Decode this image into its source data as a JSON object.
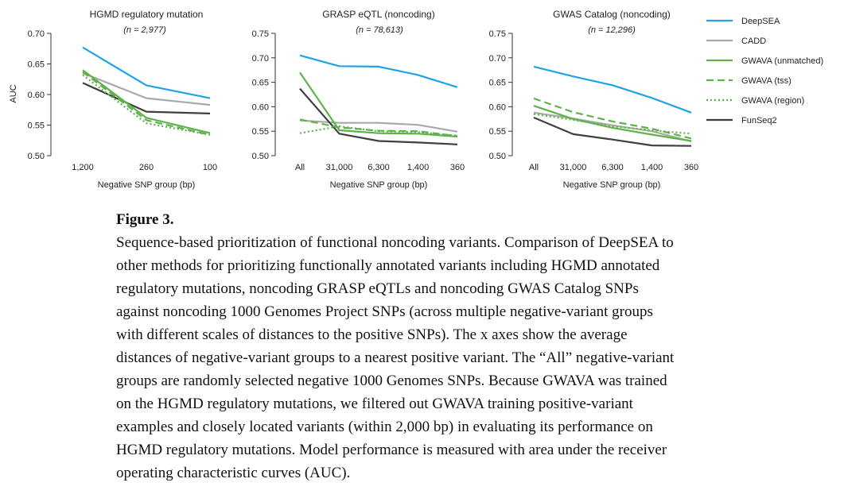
{
  "colors": {
    "DeepSEA": "#1ea3e6",
    "CADD": "#a9a9a9",
    "GWAVA (unmatched)": "#5fb24a",
    "GWAVA (tss)": "#5fb24a",
    "GWAVA (region)": "#5fb24a",
    "FunSeq2": "#3f3f3f"
  },
  "legend": {
    "placement": "right",
    "items": [
      {
        "name": "DeepSEA",
        "style": "solid"
      },
      {
        "name": "CADD",
        "style": "solid"
      },
      {
        "name": "GWAVA (unmatched)",
        "style": "solid"
      },
      {
        "name": "GWAVA (tss)",
        "style": "dashed"
      },
      {
        "name": "GWAVA (region)",
        "style": "dotted"
      },
      {
        "name": "FunSeq2",
        "style": "solid"
      }
    ]
  },
  "chart_data": [
    {
      "type": "line",
      "title": "HGMD regulatory mutation",
      "subtitle": "(n = 2,977)",
      "xlabel": "Negative SNP group (bp)",
      "ylabel": "AUC",
      "categories": [
        "1,200",
        "260",
        "100"
      ],
      "yticks": [
        "0.50",
        "0.55",
        "0.60",
        "0.65",
        "0.70"
      ],
      "ylim": [
        0.5,
        0.7
      ],
      "series": [
        {
          "name": "DeepSEA",
          "values": [
            0.677,
            0.615,
            0.594
          ]
        },
        {
          "name": "CADD",
          "values": [
            0.635,
            0.594,
            0.583
          ]
        },
        {
          "name": "GWAVA (unmatched)",
          "values": [
            0.64,
            0.562,
            0.537
          ]
        },
        {
          "name": "GWAVA (tss)",
          "values": [
            0.637,
            0.558,
            0.534
          ]
        },
        {
          "name": "GWAVA (region)",
          "values": [
            0.632,
            0.553,
            0.534
          ]
        },
        {
          "name": "FunSeq2",
          "values": [
            0.619,
            0.572,
            0.569
          ]
        }
      ]
    },
    {
      "type": "line",
      "title": "GRASP eQTL (noncoding)",
      "subtitle": "(n = 78,613)",
      "xlabel": "Negative SNP group (bp)",
      "ylabel": "",
      "categories": [
        "All",
        "31,000",
        "6,300",
        "1,400",
        "360"
      ],
      "yticks": [
        "0.50",
        "0.55",
        "0.60",
        "0.65",
        "0.70",
        "0.75"
      ],
      "ylim": [
        0.5,
        0.75
      ],
      "series": [
        {
          "name": "DeepSEA",
          "values": [
            0.705,
            0.683,
            0.682,
            0.665,
            0.64
          ]
        },
        {
          "name": "CADD",
          "values": [
            0.572,
            0.567,
            0.567,
            0.563,
            0.549
          ]
        },
        {
          "name": "GWAVA (unmatched)",
          "values": [
            0.67,
            0.552,
            0.546,
            0.545,
            0.539
          ]
        },
        {
          "name": "GWAVA (tss)",
          "values": [
            0.574,
            0.558,
            0.551,
            0.55,
            0.54
          ]
        },
        {
          "name": "GWAVA (region)",
          "values": [
            0.546,
            0.56,
            0.55,
            0.548,
            0.541
          ]
        },
        {
          "name": "FunSeq2",
          "values": [
            0.637,
            0.545,
            0.53,
            0.527,
            0.523
          ]
        }
      ]
    },
    {
      "type": "line",
      "title": "GWAS Catalog (noncoding)",
      "subtitle": "(n = 12,296)",
      "xlabel": "Negative SNP group (bp)",
      "ylabel": "",
      "categories": [
        "All",
        "31,000",
        "6,300",
        "1,400",
        "360"
      ],
      "yticks": [
        "0.50",
        "0.55",
        "0.60",
        "0.65",
        "0.70",
        "0.75"
      ],
      "ylim": [
        0.5,
        0.75
      ],
      "series": [
        {
          "name": "DeepSEA",
          "values": [
            0.682,
            0.662,
            0.644,
            0.618,
            0.588
          ]
        },
        {
          "name": "CADD",
          "values": [
            0.588,
            0.576,
            0.562,
            0.55,
            0.529
          ]
        },
        {
          "name": "GWAVA (unmatched)",
          "values": [
            0.602,
            0.575,
            0.557,
            0.543,
            0.53
          ]
        },
        {
          "name": "GWAVA (tss)",
          "values": [
            0.617,
            0.589,
            0.57,
            0.555,
            0.535
          ]
        },
        {
          "name": "GWAVA (region)",
          "values": [
            0.585,
            0.573,
            0.56,
            0.552,
            0.545
          ]
        },
        {
          "name": "FunSeq2",
          "values": [
            0.578,
            0.544,
            0.533,
            0.521,
            0.52
          ]
        }
      ]
    }
  ],
  "caption": {
    "title": "Figure 3.",
    "lines": [
      "Sequence-based prioritization of functional noncoding variants. Comparison of DeepSEA to",
      "other methods for prioritizing functionally annotated variants including HGMD annotated",
      "regulatory mutations, noncoding GRASP eQTLs and noncoding GWAS Catalog SNPs",
      "against noncoding 1000 Genomes Project SNPs (across multiple negative-variant groups",
      "with different scales of distances to the positive SNPs). The x axes show the average",
      "distances of negative-variant groups to a nearest positive variant. The “All” negative-variant",
      "groups are randomly selected negative 1000 Genomes SNPs. Because GWAVA was trained",
      "on the HGMD regulatory mutations, we filtered out GWAVA training positive-variant",
      "examples and closely located variants (within 2,000 bp) in evaluating its performance on",
      "HGMD regulatory mutations. Model performance is measured with area under the receiver",
      "operating characteristic curves (AUC)."
    ]
  }
}
